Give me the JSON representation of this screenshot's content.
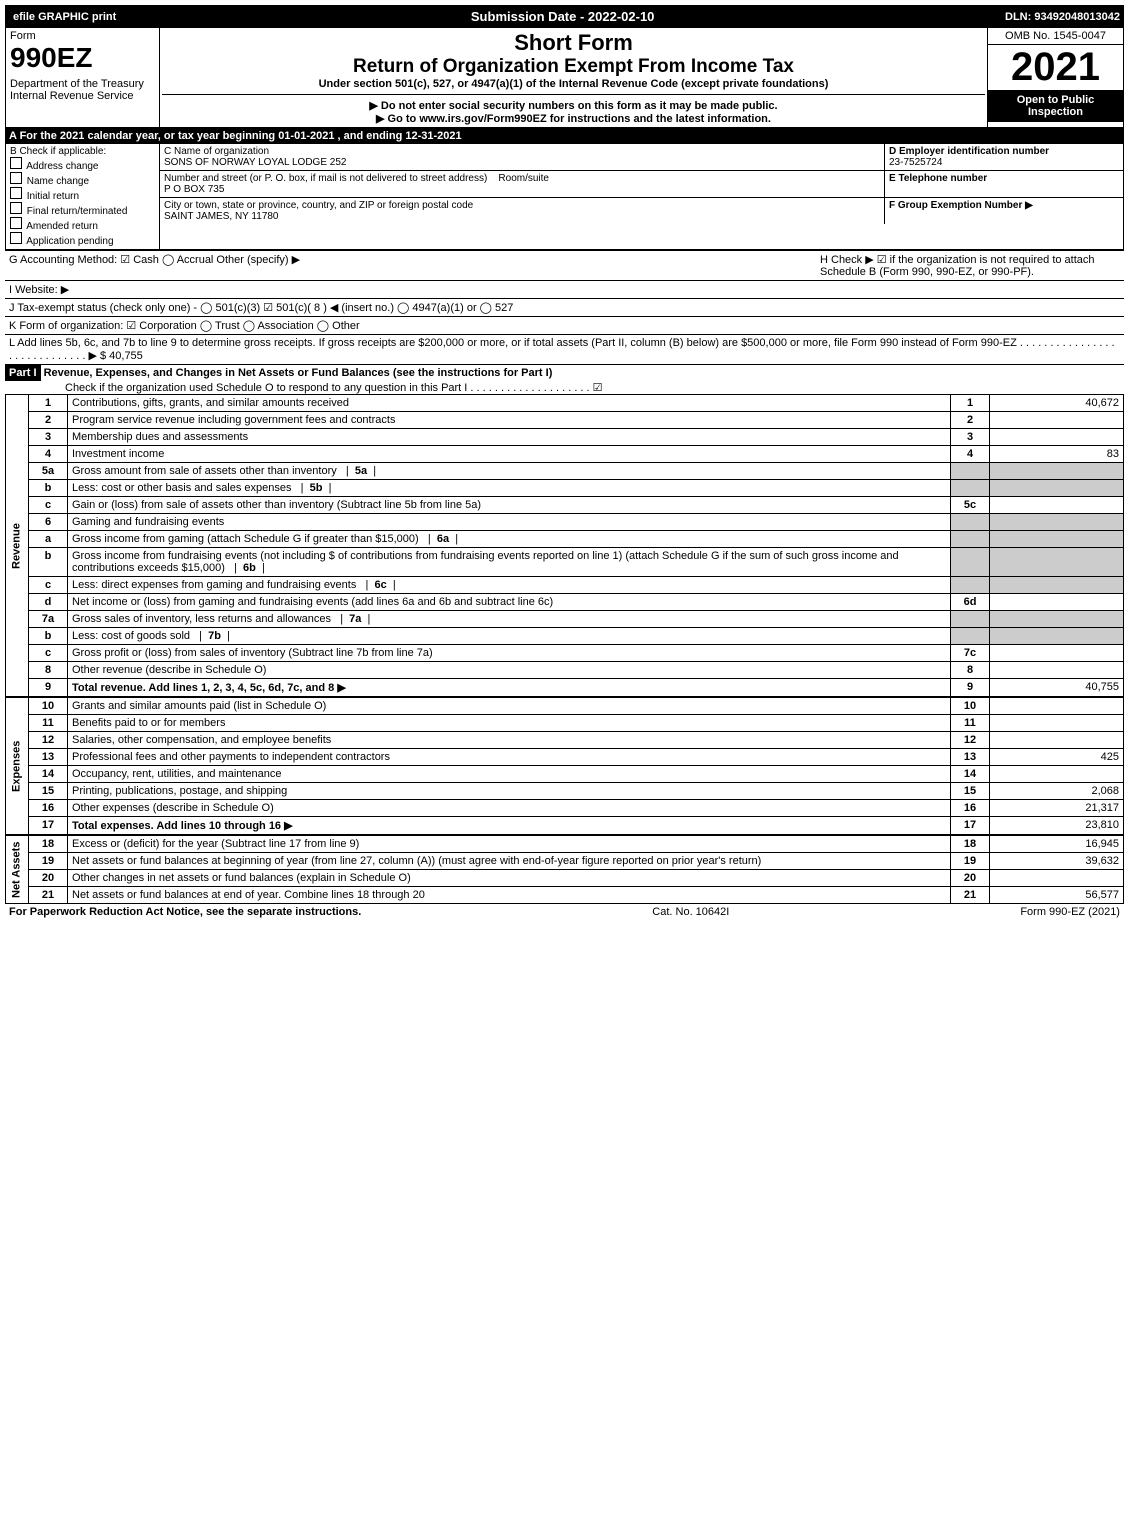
{
  "top": {
    "efile": "efile GRAPHIC print",
    "submission": "Submission Date - 2022-02-10",
    "dln": "DLN: 93492048013042"
  },
  "header": {
    "form": "Form",
    "formNum": "990EZ",
    "dept": "Department of the Treasury",
    "irs": "Internal Revenue Service",
    "title1": "Short Form",
    "title2": "Return of Organization Exempt From Income Tax",
    "subtitle": "Under section 501(c), 527, or 4947(a)(1) of the Internal Revenue Code (except private foundations)",
    "warn": "▶ Do not enter social security numbers on this form as it may be made public.",
    "goto": "▶ Go to www.irs.gov/Form990EZ for instructions and the latest information.",
    "omb": "OMB No. 1545-0047",
    "year": "2021",
    "open": "Open to Public Inspection"
  },
  "a": "A  For the 2021 calendar year, or tax year beginning 01-01-2021 , and ending 12-31-2021",
  "b": {
    "label": "B  Check if applicable:",
    "opts": [
      "Address change",
      "Name change",
      "Initial return",
      "Final return/terminated",
      "Amended return",
      "Application pending"
    ]
  },
  "c": {
    "nameLabel": "C Name of organization",
    "name": "SONS OF NORWAY LOYAL LODGE 252",
    "addrLabel": "Number and street (or P. O. box, if mail is not delivered to street address)",
    "room": "Room/suite",
    "addr": "P O BOX 735",
    "cityLabel": "City or town, state or province, country, and ZIP or foreign postal code",
    "city": "SAINT JAMES, NY  11780"
  },
  "d": {
    "label": "D Employer identification number",
    "value": "23-7525724"
  },
  "e": {
    "label": "E Telephone number"
  },
  "f": {
    "label": "F Group Exemption Number  ▶"
  },
  "g": "G Accounting Method:  ☑ Cash  ◯ Accrual  Other (specify) ▶",
  "h": "H  Check ▶ ☑ if the organization is not required to attach Schedule B (Form 990, 990-EZ, or 990-PF).",
  "i": "I Website: ▶",
  "j": "J Tax-exempt status (check only one) - ◯ 501(c)(3)  ☑ 501(c)( 8 ) ◀ (insert no.) ◯ 4947(a)(1) or ◯ 527",
  "k": "K Form of organization:  ☑ Corporation  ◯ Trust  ◯ Association  ◯ Other",
  "l": "L Add lines 5b, 6c, and 7b to line 9 to determine gross receipts. If gross receipts are $200,000 or more, or if total assets (Part II, column (B) below) are $500,000 or more, file Form 990 instead of Form 990-EZ . . . . . . . . . . . . . . . . . . . . . . . . . . . . . ▶ $ 40,755",
  "part1": {
    "title": "Part I",
    "desc": "Revenue, Expenses, and Changes in Net Assets or Fund Balances (see the instructions for Part I)",
    "check": "Check if the organization used Schedule O to respond to any question in this Part I . . . . . . . . . . . . . . . . . . . .  ☑"
  },
  "revenue": {
    "label": "Revenue",
    "rows": [
      {
        "n": "1",
        "t": "Contributions, gifts, grants, and similar amounts received",
        "rn": "1",
        "v": "40,672"
      },
      {
        "n": "2",
        "t": "Program service revenue including government fees and contracts",
        "rn": "2",
        "v": ""
      },
      {
        "n": "3",
        "t": "Membership dues and assessments",
        "rn": "3",
        "v": ""
      },
      {
        "n": "4",
        "t": "Investment income",
        "rn": "4",
        "v": "83"
      },
      {
        "n": "5a",
        "t": "Gross amount from sale of assets other than inventory",
        "sub": "5a"
      },
      {
        "n": "b",
        "t": "Less: cost or other basis and sales expenses",
        "sub": "5b"
      },
      {
        "n": "c",
        "t": "Gain or (loss) from sale of assets other than inventory (Subtract line 5b from line 5a)",
        "rn": "5c",
        "v": ""
      },
      {
        "n": "6",
        "t": "Gaming and fundraising events"
      },
      {
        "n": "a",
        "t": "Gross income from gaming (attach Schedule G if greater than $15,000)",
        "sub": "6a"
      },
      {
        "n": "b",
        "t": "Gross income from fundraising events (not including $          of contributions from fundraising events reported on line 1) (attach Schedule G if the sum of such gross income and contributions exceeds $15,000)",
        "sub": "6b"
      },
      {
        "n": "c",
        "t": "Less: direct expenses from gaming and fundraising events",
        "sub": "6c"
      },
      {
        "n": "d",
        "t": "Net income or (loss) from gaming and fundraising events (add lines 6a and 6b and subtract line 6c)",
        "rn": "6d",
        "v": ""
      },
      {
        "n": "7a",
        "t": "Gross sales of inventory, less returns and allowances",
        "sub": "7a"
      },
      {
        "n": "b",
        "t": "Less: cost of goods sold",
        "sub": "7b"
      },
      {
        "n": "c",
        "t": "Gross profit or (loss) from sales of inventory (Subtract line 7b from line 7a)",
        "rn": "7c",
        "v": ""
      },
      {
        "n": "8",
        "t": "Other revenue (describe in Schedule O)",
        "rn": "8",
        "v": ""
      },
      {
        "n": "9",
        "t": "Total revenue. Add lines 1, 2, 3, 4, 5c, 6d, 7c, and 8   ▶",
        "rn": "9",
        "v": "40,755",
        "bold": true
      }
    ]
  },
  "expenses": {
    "label": "Expenses",
    "rows": [
      {
        "n": "10",
        "t": "Grants and similar amounts paid (list in Schedule O)",
        "rn": "10",
        "v": ""
      },
      {
        "n": "11",
        "t": "Benefits paid to or for members",
        "rn": "11",
        "v": ""
      },
      {
        "n": "12",
        "t": "Salaries, other compensation, and employee benefits",
        "rn": "12",
        "v": ""
      },
      {
        "n": "13",
        "t": "Professional fees and other payments to independent contractors",
        "rn": "13",
        "v": "425"
      },
      {
        "n": "14",
        "t": "Occupancy, rent, utilities, and maintenance",
        "rn": "14",
        "v": ""
      },
      {
        "n": "15",
        "t": "Printing, publications, postage, and shipping",
        "rn": "15",
        "v": "2,068"
      },
      {
        "n": "16",
        "t": "Other expenses (describe in Schedule O)",
        "rn": "16",
        "v": "21,317"
      },
      {
        "n": "17",
        "t": "Total expenses. Add lines 10 through 16   ▶",
        "rn": "17",
        "v": "23,810",
        "bold": true
      }
    ]
  },
  "net": {
    "label": "Net Assets",
    "rows": [
      {
        "n": "18",
        "t": "Excess or (deficit) for the year (Subtract line 17 from line 9)",
        "rn": "18",
        "v": "16,945"
      },
      {
        "n": "19",
        "t": "Net assets or fund balances at beginning of year (from line 27, column (A)) (must agree with end-of-year figure reported on prior year's return)",
        "rn": "19",
        "v": "39,632"
      },
      {
        "n": "20",
        "t": "Other changes in net assets or fund balances (explain in Schedule O)",
        "rn": "20",
        "v": ""
      },
      {
        "n": "21",
        "t": "Net assets or fund balances at end of year. Combine lines 18 through 20",
        "rn": "21",
        "v": "56,577"
      }
    ]
  },
  "footer": {
    "left": "For Paperwork Reduction Act Notice, see the separate instructions.",
    "mid": "Cat. No. 10642I",
    "right": "Form 990-EZ (2021)"
  }
}
